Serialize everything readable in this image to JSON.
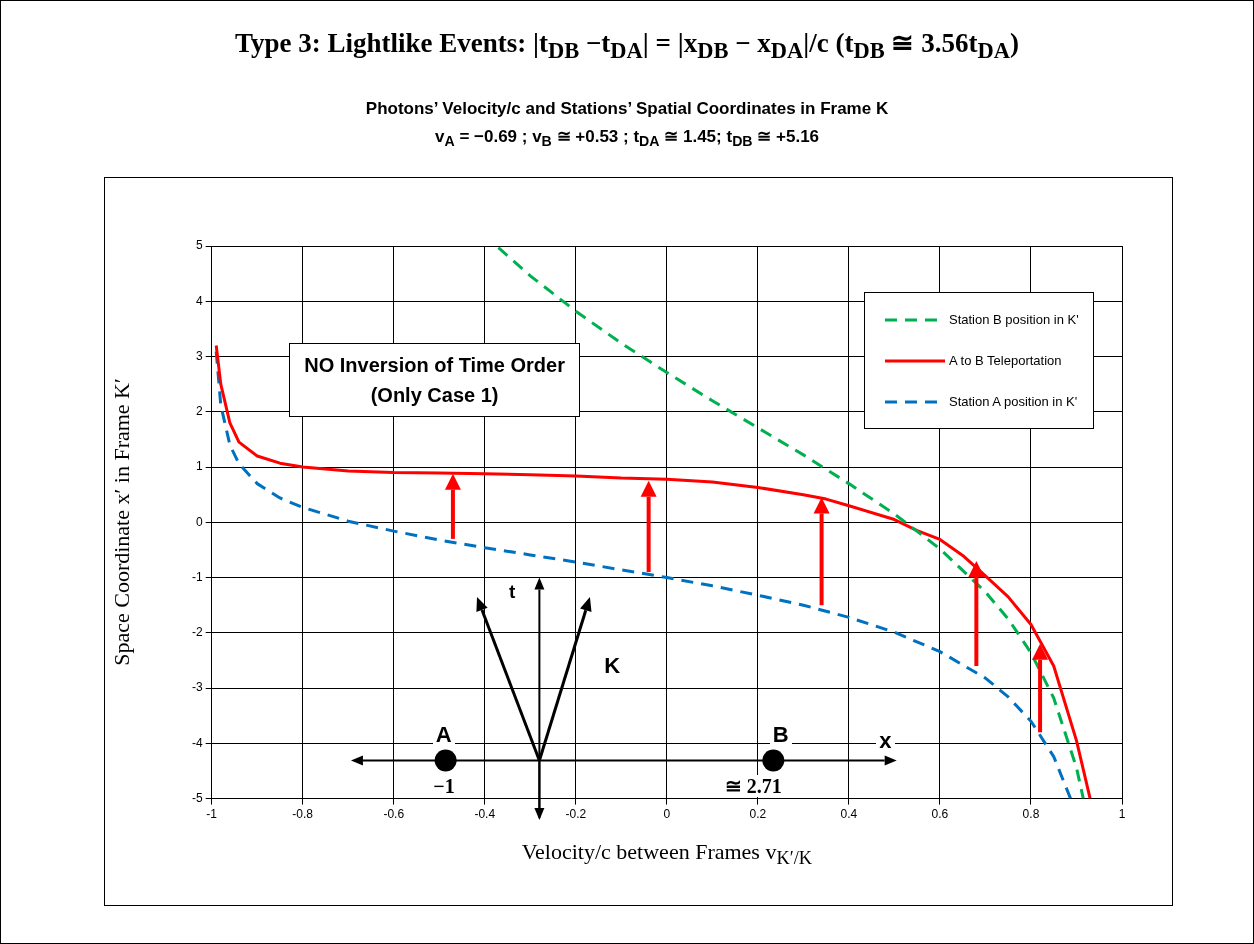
{
  "chart_data": {
    "type": "line",
    "title": "Type 3: Lightlike Events: |t$_{DB}$ −t$_{DA}$| = |x$_{DB}$ − x$_{DA}$|/c  (t$_{DB}$ ≅ 3.56t$_{DA}$)",
    "subtitle": "Photons’ Velocity/c and Stations’ Spatial Coordinates in Frame K\nv$_{A}$ = −0.69  ;  v$_{B}$ ≅ +0.53  ;  t$_{DA}$ ≅ 1.45;  t$_{DB}$ ≅ +5.16",
    "xlabel": "Velocity/c between Frames v$_{K′/K}$",
    "ylabel": "Space Coordinate x′  in Frame K′",
    "annotations": [
      "NO Inversion of Time Order\n(Only Case 1)",
      "t",
      "K",
      "A",
      "B",
      "x",
      "−1",
      "≅ 2.71"
    ],
    "series": [
      {
        "name": "Station B position in K'",
        "color": "#00b050",
        "line_style": "dashed",
        "x": [
          -0.37,
          -0.3,
          -0.2,
          -0.1,
          0,
          0.1,
          0.2,
          0.3,
          0.4,
          0.5,
          0.6,
          0.7,
          0.75,
          0.8,
          0.85,
          0.9,
          0.915
        ],
        "values": [
          4.97,
          4.46,
          3.82,
          3.24,
          2.71,
          2.2,
          1.71,
          1.22,
          0.7,
          0.15,
          -0.48,
          -1.26,
          -1.75,
          -2.36,
          -3.18,
          -4.44,
          -5
        ]
      },
      {
        "name": "A to B Teleportation",
        "color": "#ff0000",
        "line_style": "solid",
        "x": [
          -0.99,
          -0.98,
          -0.96,
          -0.94,
          -0.9,
          -0.85,
          -0.8,
          -0.7,
          -0.6,
          -0.5,
          -0.4,
          -0.3,
          -0.2,
          -0.1,
          0,
          0.1,
          0.2,
          0.3,
          0.35,
          0.4,
          0.5,
          0.55,
          0.6,
          0.65,
          0.7,
          0.75,
          0.8,
          0.85,
          0.9,
          0.93
        ],
        "values": [
          3.2,
          2.5,
          1.8,
          1.45,
          1.2,
          1.07,
          1.0,
          0.93,
          0.9,
          0.89,
          0.88,
          0.86,
          0.84,
          0.8,
          0.78,
          0.73,
          0.63,
          0.5,
          0.42,
          0.3,
          0.05,
          -0.15,
          -0.31,
          -0.6,
          -0.97,
          -1.35,
          -1.85,
          -2.6,
          -3.95,
          -5
        ]
      },
      {
        "name": "Station A position in K'",
        "color": "#0070c0",
        "line_style": "dashed",
        "x": [
          -0.99,
          -0.98,
          -0.96,
          -0.94,
          -0.9,
          -0.85,
          -0.8,
          -0.7,
          -0.6,
          -0.5,
          -0.4,
          -0.3,
          -0.2,
          -0.1,
          0,
          0.1,
          0.2,
          0.3,
          0.4,
          0.5,
          0.6,
          0.7,
          0.75,
          0.8,
          0.85,
          0.887
        ],
        "values": [
          3.09,
          2.12,
          1.4,
          1.06,
          0.7,
          0.44,
          0.27,
          0.02,
          -0.16,
          -0.32,
          -0.46,
          -0.59,
          -0.72,
          -0.86,
          -1,
          -1.15,
          -1.32,
          -1.5,
          -1.72,
          -1.99,
          -2.34,
          -2.82,
          -3.16,
          -3.6,
          -4.24,
          -5
        ]
      }
    ],
    "xlim": [
      -1,
      1
    ],
    "xticks": [
      -1,
      -0.8,
      -0.6,
      -0.4,
      -0.2,
      0,
      0.2,
      0.4,
      0.6,
      0.8,
      1
    ],
    "ylim": [
      -5,
      5
    ],
    "yticks": [
      -5,
      -4,
      -3,
      -2,
      -1,
      0,
      1,
      2,
      3,
      4,
      5
    ],
    "grid": true,
    "legend": "top right",
    "marker": "none"
  }
}
